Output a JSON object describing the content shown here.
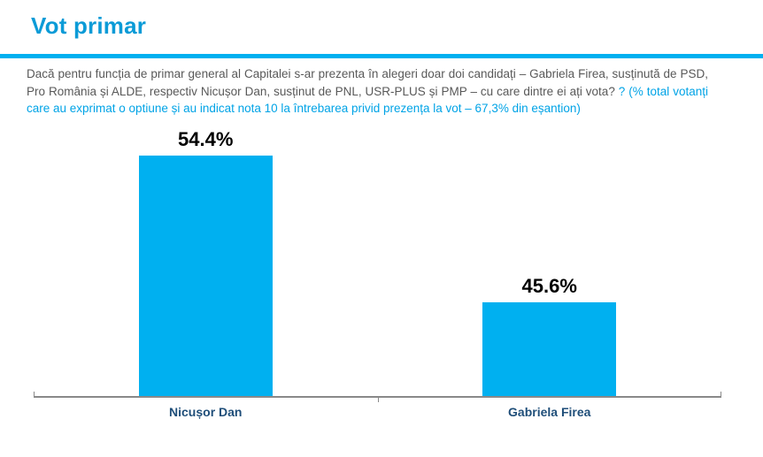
{
  "page": {
    "title": "Vot primar"
  },
  "question": {
    "main": "Dacă pentru funcția de primar general al Capitalei s-ar prezenta în alegeri doar doi candidați – Gabriela Firea, susținută de PSD, Pro România și ALDE, respectiv Nicușor Dan, susținut de PNL, USR-PLUS și PMP – cu care dintre ei ați vota? ",
    "note": "? (% total votanți care au exprimat o optiune și au indicat nota 10 la întrebarea privid prezența la vot – 67,3% din eșantion)"
  },
  "colors": {
    "accent_cyan": "#00b0f0",
    "title_blue": "#0b9bd7",
    "note_cyan": "#00a3e6",
    "body_gray": "#595959",
    "category_navy": "#1f4e79",
    "axis_gray": "#898989"
  },
  "chart_data": {
    "type": "bar",
    "title": "Vot primar",
    "categories": [
      "Nicușor Dan",
      "Gabriela Firea"
    ],
    "values": [
      54.4,
      45.6
    ],
    "value_labels": [
      "54.4%",
      "45.6%"
    ],
    "unit": "%",
    "bar_color": "#00b0f0",
    "ylim": [
      40,
      56
    ],
    "y_axis_visible": false,
    "x_axis_baseline": true,
    "grid": false,
    "legend": "none"
  }
}
